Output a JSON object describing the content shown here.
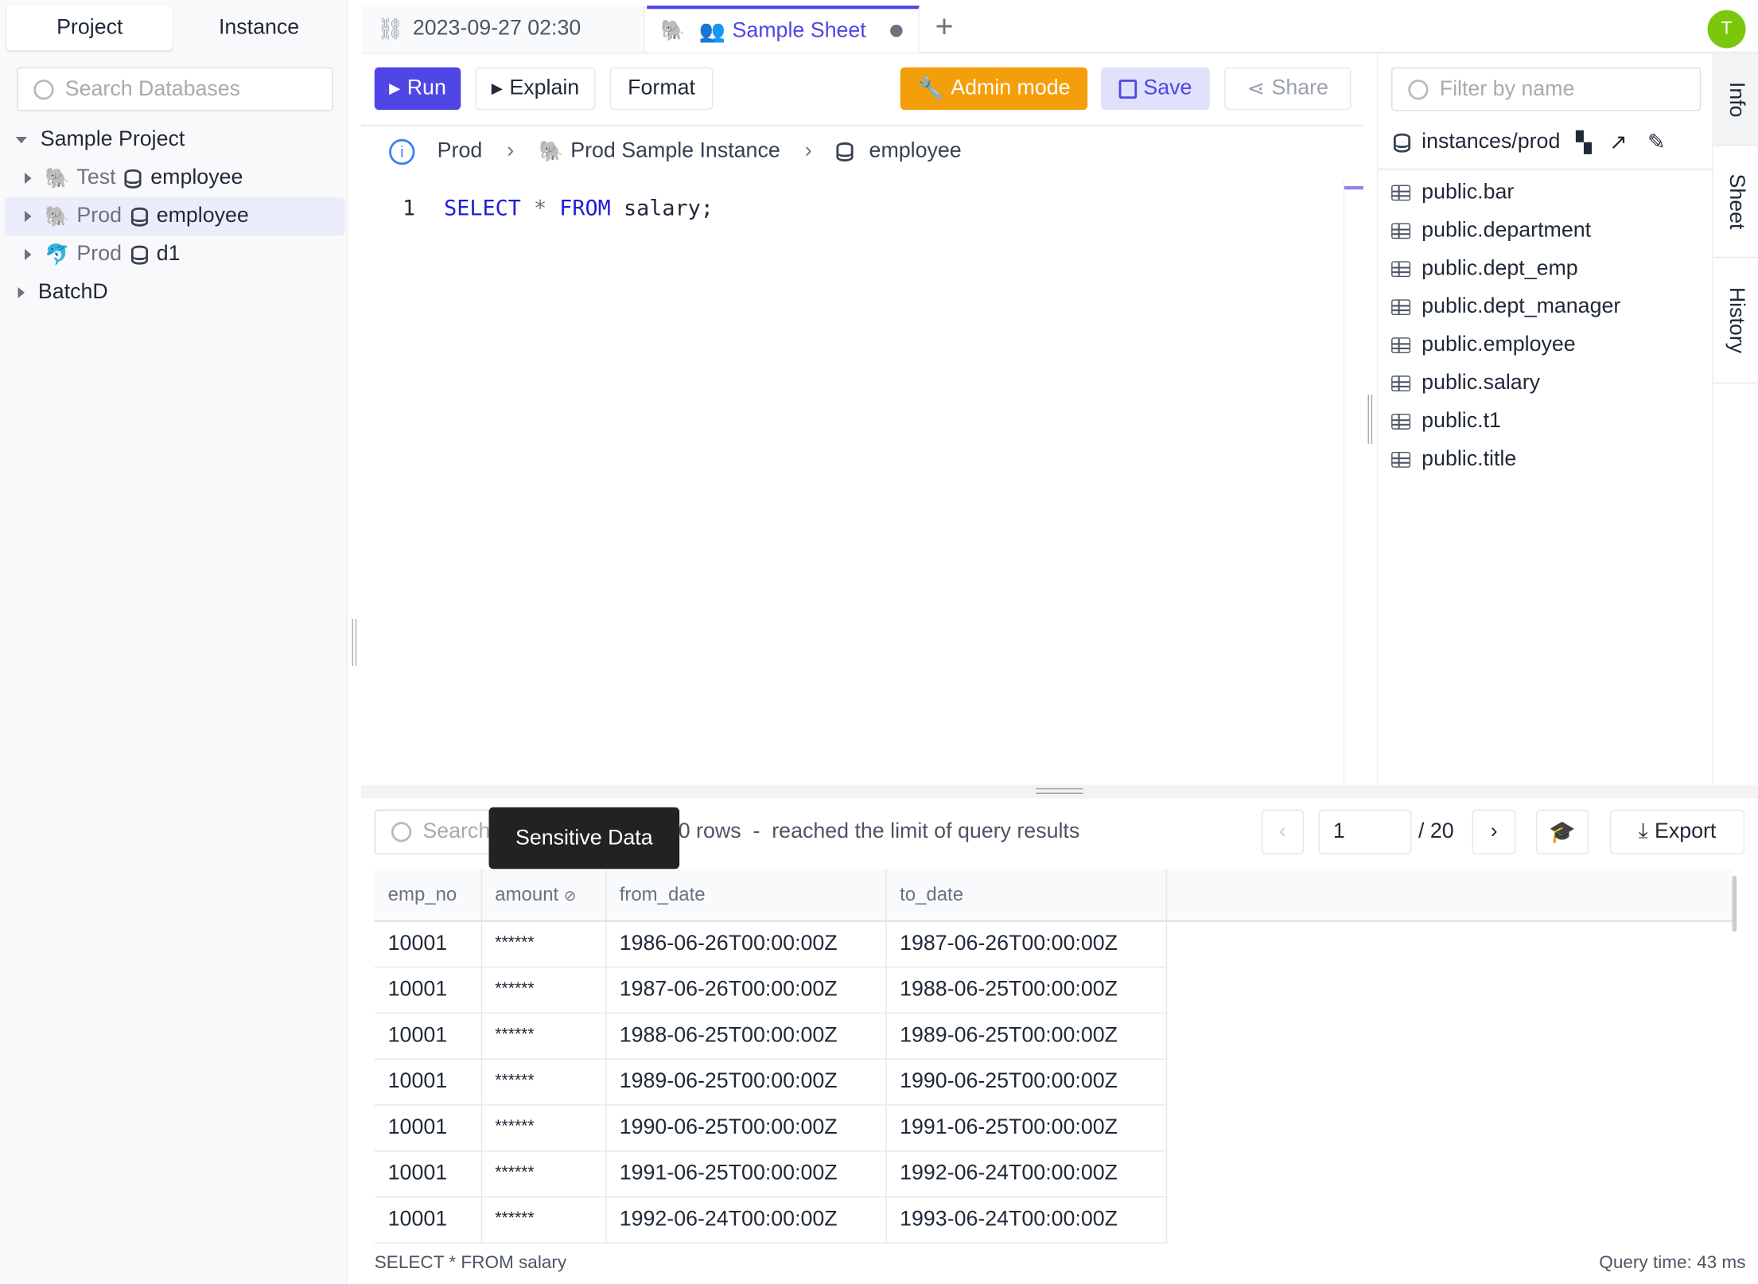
{
  "sidebar": {
    "tabs": [
      "Project",
      "Instance"
    ],
    "search_placeholder": "Search Databases",
    "tree": [
      {
        "label": "Sample Project",
        "expanded": true
      },
      {
        "env": "Test",
        "db": "employee",
        "engine": "postgres"
      },
      {
        "env": "Prod",
        "db": "employee",
        "engine": "postgres",
        "selected": true
      },
      {
        "env": "Prod",
        "db": "d1",
        "engine": "mysql"
      },
      {
        "label": "BatchD",
        "expanded": false
      }
    ]
  },
  "tabs": [
    {
      "label": "2023-09-27 02:30",
      "icon": "unlink-icon"
    },
    {
      "label": "Sample Sheet",
      "icon": "users-icon",
      "active": true,
      "unsaved": true
    }
  ],
  "avatar": {
    "initial": "T",
    "color": "#7ac70c"
  },
  "toolbar": {
    "run": "Run",
    "explain": "Explain",
    "format": "Format",
    "admin": "Admin mode",
    "save": "Save",
    "share": "Share"
  },
  "breadcrumb": {
    "env": "Prod",
    "instance": "Prod Sample Instance",
    "database": "employee"
  },
  "editor": {
    "line": "1",
    "keyword1": "SELECT",
    "star": "*",
    "keyword2": "FROM",
    "rest": "salary;"
  },
  "schema": {
    "filter_placeholder": "Filter by name",
    "path": "instances/prod",
    "tables": [
      "public.bar",
      "public.department",
      "public.dept_emp",
      "public.dept_manager",
      "public.employee",
      "public.salary",
      "public.t1",
      "public.title"
    ]
  },
  "side_tabs": [
    "Info",
    "Sheet",
    "History"
  ],
  "results": {
    "search_placeholder": "Search",
    "rows_text": "0 rows  -  reached the limit of query results",
    "tooltip": "Sensitive Data",
    "page": "1",
    "total_pages": "/ 20",
    "export": "Export",
    "columns": [
      "emp_no",
      "amount",
      "from_date",
      "to_date"
    ],
    "rows": [
      [
        "10001",
        "******",
        "1986-06-26T00:00:00Z",
        "1987-06-26T00:00:00Z"
      ],
      [
        "10001",
        "******",
        "1987-06-26T00:00:00Z",
        "1988-06-25T00:00:00Z"
      ],
      [
        "10001",
        "******",
        "1988-06-25T00:00:00Z",
        "1989-06-25T00:00:00Z"
      ],
      [
        "10001",
        "******",
        "1989-06-25T00:00:00Z",
        "1990-06-25T00:00:00Z"
      ],
      [
        "10001",
        "******",
        "1990-06-25T00:00:00Z",
        "1991-06-25T00:00:00Z"
      ],
      [
        "10001",
        "******",
        "1991-06-25T00:00:00Z",
        "1992-06-24T00:00:00Z"
      ],
      [
        "10001",
        "******",
        "1992-06-24T00:00:00Z",
        "1993-06-24T00:00:00Z"
      ]
    ],
    "statement": "SELECT * FROM salary",
    "query_time": "Query time: 43 ms"
  },
  "colors": {
    "accent": "#4f46e5",
    "admin": "#f59e0b",
    "save_bg": "#e0e1fb"
  }
}
